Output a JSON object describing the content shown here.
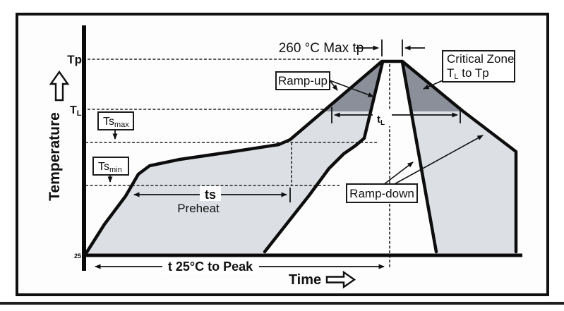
{
  "figure": {
    "axes": {
      "y_label": "Temperature",
      "x_label": "Time",
      "origin_value": "25"
    },
    "y_ticks": {
      "tp": "Tp",
      "tl_base": "T",
      "tl_sub": "L"
    },
    "callouts": {
      "tsmax_base": "Ts",
      "tsmax_sub": "max",
      "tsmin_base": "Ts",
      "tsmin_sub": "min",
      "ramp_up": "Ramp-up",
      "ramp_down": "Ramp-down",
      "critical_line1": "Critical Zone",
      "critical_line2_base": "T",
      "critical_line2_sub": "L",
      "critical_line2_rest": " to Tp"
    },
    "dimensions": {
      "peak_note": "260 °C Max  tp",
      "time_liquidus_base": "t",
      "time_liquidus_sub": "L",
      "ts": "ts",
      "preheat": "Preheat",
      "t_total": "t  25°C to Peak"
    },
    "colors": {
      "band": "#dce0e5",
      "critical": "#8a8f99",
      "ink": "#111111"
    }
  }
}
